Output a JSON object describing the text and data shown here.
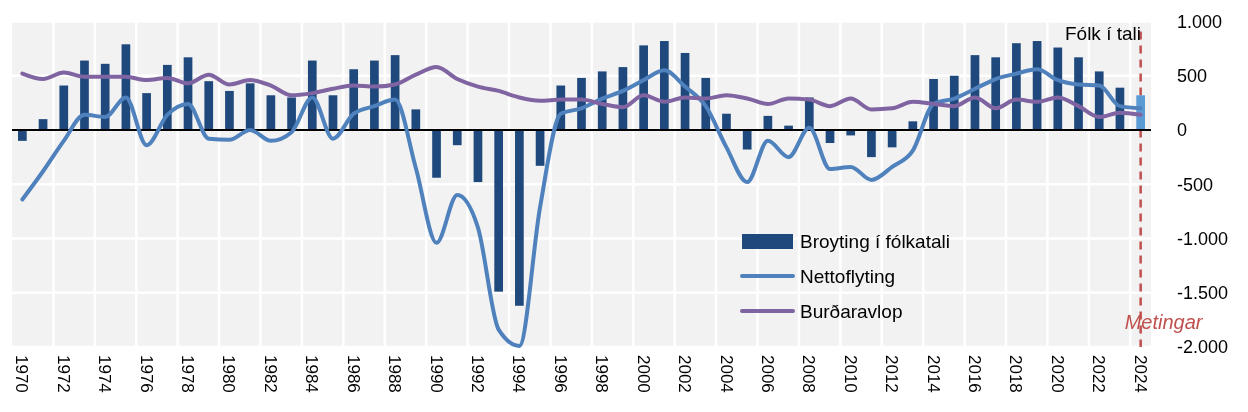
{
  "chart_data": {
    "type": "bar",
    "ylabel": "Fólk í tali",
    "categories": [
      "1970",
      null,
      "1972",
      null,
      "1974",
      null,
      "1976",
      null,
      "1978",
      null,
      "1980",
      null,
      "1982",
      null,
      "1984",
      null,
      "1986",
      null,
      "1988",
      null,
      "1990",
      null,
      "1992",
      null,
      "1994",
      null,
      "1996",
      null,
      "1998",
      null,
      "2000",
      null,
      "2002",
      null,
      "2004",
      null,
      "2006",
      null,
      "2008",
      null,
      "2010",
      null,
      "2012",
      null,
      "2014",
      null,
      "2016",
      null,
      "2018",
      null,
      "2020",
      null,
      "2022",
      null,
      "2024"
    ],
    "series": [
      {
        "name": "Broyting í fólkatali",
        "color": "#1f497d",
        "colors": [
          "#1f497d",
          "#1f497d",
          "#1f497d",
          "#1f497d",
          "#1f497d",
          "#1f497d",
          "#1f497d",
          "#1f497d",
          "#1f497d",
          "#1f497d",
          "#1f497d",
          "#1f497d",
          "#1f497d",
          "#1f497d",
          "#1f497d",
          "#1f497d",
          "#1f497d",
          "#1f497d",
          "#1f497d",
          "#1f497d",
          "#1f497d",
          "#1f497d",
          "#1f497d",
          "#1f497d",
          "#1f497d",
          "#1f497d",
          "#1f497d",
          "#1f497d",
          "#1f497d",
          "#1f497d",
          "#1f497d",
          "#1f497d",
          "#1f497d",
          "#1f497d",
          "#1f497d",
          "#1f497d",
          "#1f497d",
          "#1f497d",
          "#1f497d",
          "#1f497d",
          "#1f497d",
          "#1f497d",
          "#1f497d",
          "#1f497d",
          "#1f497d",
          "#1f497d",
          "#1f497d",
          "#1f497d",
          "#1f497d",
          "#1f497d",
          "#1f497d",
          "#1f497d",
          "#1f497d",
          "#1f497d",
          "#5b9bd5"
        ],
        "values": [
          -100,
          100,
          410,
          640,
          610,
          790,
          340,
          600,
          670,
          450,
          360,
          430,
          320,
          300,
          640,
          320,
          560,
          640,
          690,
          190,
          -440,
          -140,
          -480,
          -1490,
          -1620,
          -330,
          410,
          480,
          540,
          580,
          780,
          820,
          710,
          480,
          150,
          -180,
          130,
          40,
          300,
          -120,
          -50,
          -250,
          -160,
          80,
          470,
          500,
          690,
          670,
          800,
          820,
          760,
          670,
          540,
          390,
          320
        ]
      },
      {
        "name": "Nettoflyting",
        "type": "line",
        "color": "#4f81bd",
        "values": [
          -640,
          -380,
          -100,
          140,
          120,
          300,
          -140,
          140,
          240,
          -80,
          -90,
          0,
          -100,
          -20,
          300,
          -80,
          150,
          220,
          280,
          -350,
          -1040,
          -600,
          -900,
          -1840,
          -1990,
          -710,
          150,
          200,
          290,
          360,
          460,
          550,
          400,
          220,
          -160,
          -480,
          -100,
          -250,
          20,
          -360,
          -340,
          -460,
          -340,
          -190,
          240,
          290,
          380,
          470,
          520,
          560,
          460,
          420,
          410,
          220,
          200
        ]
      },
      {
        "name": "Burðaravlop",
        "type": "line",
        "color": "#8064a2",
        "values": [
          520,
          470,
          530,
          490,
          490,
          490,
          460,
          480,
          430,
          510,
          420,
          460,
          410,
          320,
          340,
          380,
          410,
          400,
          420,
          510,
          580,
          470,
          400,
          360,
          300,
          270,
          280,
          280,
          240,
          210,
          320,
          260,
          300,
          290,
          320,
          290,
          240,
          290,
          280,
          220,
          290,
          190,
          200,
          260,
          240,
          220,
          300,
          200,
          280,
          260,
          300,
          220,
          120,
          160,
          140
        ]
      }
    ],
    "ylim": [
      -2000,
      1000
    ],
    "yticks": [
      {
        "value": -2000,
        "label": "-2.000"
      },
      {
        "value": -1500,
        "label": "-1.500"
      },
      {
        "value": -1000,
        "label": "-1.000"
      },
      -500,
      0,
      500,
      {
        "value": 1000,
        "label": "1.000"
      }
    ],
    "grid": true,
    "legend": "bottom right",
    "line_style": "solid",
    "ref_lines": [
      {
        "axis": "x",
        "value": "2024",
        "label": "Metingar",
        "color": "#c0504d",
        "line_style": "dashed"
      }
    ]
  }
}
